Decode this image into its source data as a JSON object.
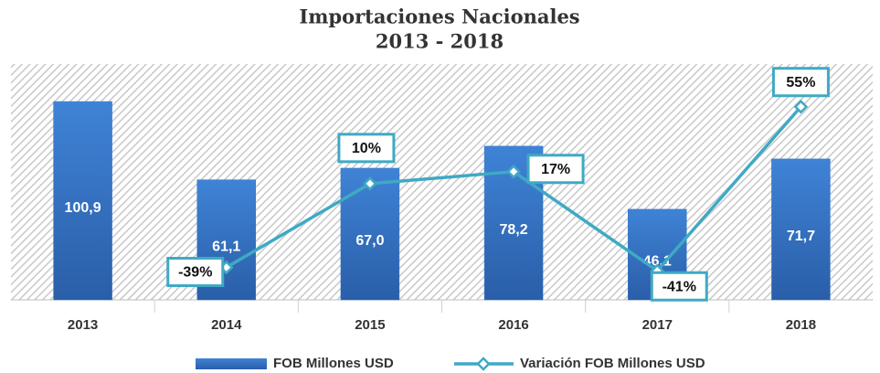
{
  "chart_data": {
    "type": "bar",
    "title": "Importaciones Nacionales",
    "subtitle": "2013 - 2018",
    "categories": [
      "2013",
      "2014",
      "2015",
      "2016",
      "2017",
      "2018"
    ],
    "series": [
      {
        "name": "FOB Millones USD",
        "type": "bar",
        "color": "#3577c9",
        "values": [
          100.9,
          61.1,
          67.0,
          78.2,
          46.1,
          71.7
        ],
        "value_labels": [
          "100,9",
          "61,1",
          "67,0",
          "78,2",
          "46,1",
          "71,7"
        ]
      },
      {
        "name": "Variación FOB Millones USD",
        "type": "line",
        "axis": "y2",
        "color": "#3fa9c4",
        "values": [
          null,
          -39,
          10,
          17,
          -41,
          55
        ],
        "value_labels": [
          null,
          "-39%",
          "10%",
          "17%",
          "-41%",
          "55%"
        ]
      }
    ],
    "ylim": [
      0,
      120
    ],
    "y2lim": [
      -58,
      80
    ],
    "legend": "bottom"
  }
}
